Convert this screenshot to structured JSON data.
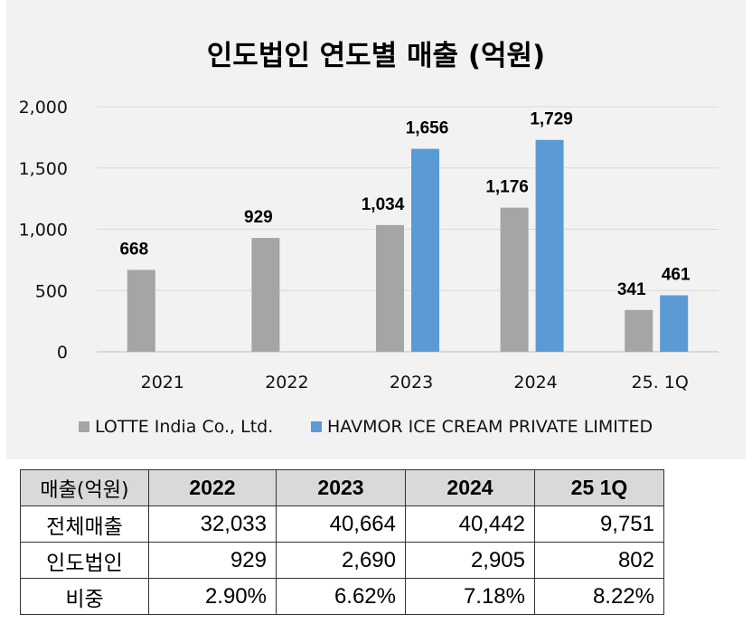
{
  "chart_data": {
    "type": "bar",
    "title": "인도법인 연도별 매출 (억원)",
    "categories": [
      "2021",
      "2022",
      "2023",
      "2024",
      "25. 1Q"
    ],
    "ylim": [
      0,
      2000
    ],
    "yticks": [
      "0",
      "500",
      "1,000",
      "1,500",
      "2,000"
    ],
    "grid": true,
    "legend_position": "bottom",
    "series": [
      {
        "name": "LOTTE India Co., Ltd.",
        "color": "#a5a5a5",
        "values": [
          668,
          929,
          1034,
          1176,
          341
        ],
        "labels": [
          "668",
          "929",
          "1,034",
          "1,176",
          "341"
        ]
      },
      {
        "name": "HAVMOR ICE CREAM PRIVATE LIMITED",
        "color": "#5b9bd5",
        "values": [
          null,
          null,
          1656,
          1729,
          461
        ],
        "labels": [
          "",
          "",
          "1,656",
          "1,729",
          "461"
        ]
      }
    ]
  },
  "table": {
    "header": [
      "매출(억원)",
      "2022",
      "2023",
      "2024",
      "25 1Q"
    ],
    "rows": [
      [
        "전체매출",
        "32,033",
        "40,664",
        "40,442",
        "9,751"
      ],
      [
        "인도법인",
        "929",
        "2,690",
        "2,905",
        "802"
      ],
      [
        "비중",
        "2.90%",
        "6.62%",
        "7.18%",
        "8.22%"
      ]
    ]
  }
}
